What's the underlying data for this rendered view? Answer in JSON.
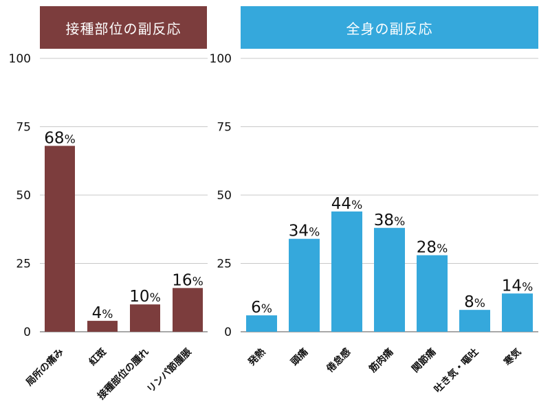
{
  "chart_data": [
    {
      "type": "bar",
      "title": "接種部位の副反応",
      "title_color": "#7c3d3d",
      "bar_color": "#7c3d3d",
      "categories": [
        "局所の痛み",
        "紅斑",
        "接種部位の腫れ",
        "リンパ節腫脹"
      ],
      "values": [
        68,
        4,
        10,
        16
      ],
      "value_labels": [
        "68",
        "4",
        "10",
        "16"
      ],
      "value_unit": "%",
      "ylim": [
        0,
        100
      ],
      "yticks": [
        "0",
        "25",
        "50",
        "75",
        "100"
      ],
      "grid": true
    },
    {
      "type": "bar",
      "title": "全身の副反応",
      "title_color": "#35a8dc",
      "bar_color": "#35a8dc",
      "categories": [
        "発熱",
        "頭痛",
        "倦怠感",
        "筋肉痛",
        "関節痛",
        "吐き気・嘔吐",
        "寒気"
      ],
      "values": [
        6,
        34,
        44,
        38,
        28,
        8,
        14
      ],
      "value_labels": [
        "6",
        "34",
        "44",
        "38",
        "28",
        "8",
        "14"
      ],
      "value_unit": "%",
      "ylim": [
        0,
        100
      ],
      "yticks": [
        "0",
        "25",
        "50",
        "75",
        "100"
      ],
      "grid": true
    }
  ]
}
